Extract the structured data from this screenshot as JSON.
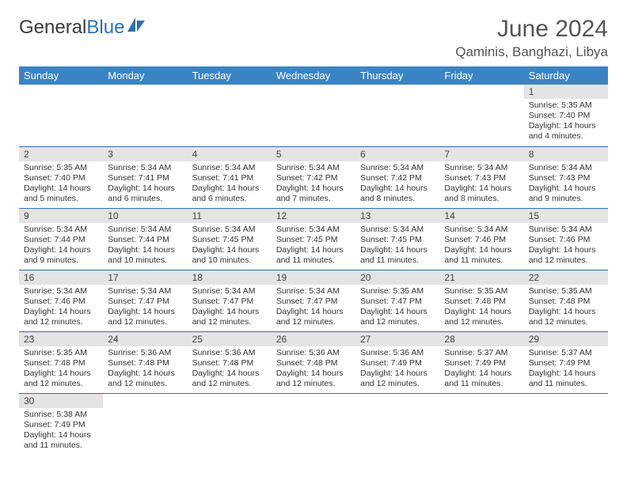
{
  "logo": {
    "text1": "General",
    "text2": "Blue"
  },
  "title": "June 2024",
  "location": "Qaminis, Banghazi, Libya",
  "colors": {
    "header_bg": "#3b84c4",
    "header_text": "#ffffff",
    "daynum_bg": "#e4e4e4",
    "border": "#2f6fb0",
    "logo_blue": "#2f6fb0"
  },
  "weekdays": [
    "Sunday",
    "Monday",
    "Tuesday",
    "Wednesday",
    "Thursday",
    "Friday",
    "Saturday"
  ],
  "weeks": [
    [
      null,
      null,
      null,
      null,
      null,
      null,
      {
        "d": "1",
        "sr": "Sunrise: 5:35 AM",
        "ss": "Sunset: 7:40 PM",
        "dl": "Daylight: 14 hours and 4 minutes."
      }
    ],
    [
      {
        "d": "2",
        "sr": "Sunrise: 5:35 AM",
        "ss": "Sunset: 7:40 PM",
        "dl": "Daylight: 14 hours and 5 minutes."
      },
      {
        "d": "3",
        "sr": "Sunrise: 5:34 AM",
        "ss": "Sunset: 7:41 PM",
        "dl": "Daylight: 14 hours and 6 minutes."
      },
      {
        "d": "4",
        "sr": "Sunrise: 5:34 AM",
        "ss": "Sunset: 7:41 PM",
        "dl": "Daylight: 14 hours and 6 minutes."
      },
      {
        "d": "5",
        "sr": "Sunrise: 5:34 AM",
        "ss": "Sunset: 7:42 PM",
        "dl": "Daylight: 14 hours and 7 minutes."
      },
      {
        "d": "6",
        "sr": "Sunrise: 5:34 AM",
        "ss": "Sunset: 7:42 PM",
        "dl": "Daylight: 14 hours and 8 minutes."
      },
      {
        "d": "7",
        "sr": "Sunrise: 5:34 AM",
        "ss": "Sunset: 7:43 PM",
        "dl": "Daylight: 14 hours and 8 minutes."
      },
      {
        "d": "8",
        "sr": "Sunrise: 5:34 AM",
        "ss": "Sunset: 7:43 PM",
        "dl": "Daylight: 14 hours and 9 minutes."
      }
    ],
    [
      {
        "d": "9",
        "sr": "Sunrise: 5:34 AM",
        "ss": "Sunset: 7:44 PM",
        "dl": "Daylight: 14 hours and 9 minutes."
      },
      {
        "d": "10",
        "sr": "Sunrise: 5:34 AM",
        "ss": "Sunset: 7:44 PM",
        "dl": "Daylight: 14 hours and 10 minutes."
      },
      {
        "d": "11",
        "sr": "Sunrise: 5:34 AM",
        "ss": "Sunset: 7:45 PM",
        "dl": "Daylight: 14 hours and 10 minutes."
      },
      {
        "d": "12",
        "sr": "Sunrise: 5:34 AM",
        "ss": "Sunset: 7:45 PM",
        "dl": "Daylight: 14 hours and 11 minutes."
      },
      {
        "d": "13",
        "sr": "Sunrise: 5:34 AM",
        "ss": "Sunset: 7:45 PM",
        "dl": "Daylight: 14 hours and 11 minutes."
      },
      {
        "d": "14",
        "sr": "Sunrise: 5:34 AM",
        "ss": "Sunset: 7:46 PM",
        "dl": "Daylight: 14 hours and 11 minutes."
      },
      {
        "d": "15",
        "sr": "Sunrise: 5:34 AM",
        "ss": "Sunset: 7:46 PM",
        "dl": "Daylight: 14 hours and 12 minutes."
      }
    ],
    [
      {
        "d": "16",
        "sr": "Sunrise: 5:34 AM",
        "ss": "Sunset: 7:46 PM",
        "dl": "Daylight: 14 hours and 12 minutes."
      },
      {
        "d": "17",
        "sr": "Sunrise: 5:34 AM",
        "ss": "Sunset: 7:47 PM",
        "dl": "Daylight: 14 hours and 12 minutes."
      },
      {
        "d": "18",
        "sr": "Sunrise: 5:34 AM",
        "ss": "Sunset: 7:47 PM",
        "dl": "Daylight: 14 hours and 12 minutes."
      },
      {
        "d": "19",
        "sr": "Sunrise: 5:34 AM",
        "ss": "Sunset: 7:47 PM",
        "dl": "Daylight: 14 hours and 12 minutes."
      },
      {
        "d": "20",
        "sr": "Sunrise: 5:35 AM",
        "ss": "Sunset: 7:47 PM",
        "dl": "Daylight: 14 hours and 12 minutes."
      },
      {
        "d": "21",
        "sr": "Sunrise: 5:35 AM",
        "ss": "Sunset: 7:48 PM",
        "dl": "Daylight: 14 hours and 12 minutes."
      },
      {
        "d": "22",
        "sr": "Sunrise: 5:35 AM",
        "ss": "Sunset: 7:48 PM",
        "dl": "Daylight: 14 hours and 12 minutes."
      }
    ],
    [
      {
        "d": "23",
        "sr": "Sunrise: 5:35 AM",
        "ss": "Sunset: 7:48 PM",
        "dl": "Daylight: 14 hours and 12 minutes."
      },
      {
        "d": "24",
        "sr": "Sunrise: 5:36 AM",
        "ss": "Sunset: 7:48 PM",
        "dl": "Daylight: 14 hours and 12 minutes."
      },
      {
        "d": "25",
        "sr": "Sunrise: 5:36 AM",
        "ss": "Sunset: 7:48 PM",
        "dl": "Daylight: 14 hours and 12 minutes."
      },
      {
        "d": "26",
        "sr": "Sunrise: 5:36 AM",
        "ss": "Sunset: 7:48 PM",
        "dl": "Daylight: 14 hours and 12 minutes."
      },
      {
        "d": "27",
        "sr": "Sunrise: 5:36 AM",
        "ss": "Sunset: 7:49 PM",
        "dl": "Daylight: 14 hours and 12 minutes."
      },
      {
        "d": "28",
        "sr": "Sunrise: 5:37 AM",
        "ss": "Sunset: 7:49 PM",
        "dl": "Daylight: 14 hours and 11 minutes."
      },
      {
        "d": "29",
        "sr": "Sunrise: 5:37 AM",
        "ss": "Sunset: 7:49 PM",
        "dl": "Daylight: 14 hours and 11 minutes."
      }
    ],
    [
      {
        "d": "30",
        "sr": "Sunrise: 5:38 AM",
        "ss": "Sunset: 7:49 PM",
        "dl": "Daylight: 14 hours and 11 minutes."
      },
      null,
      null,
      null,
      null,
      null,
      null
    ]
  ]
}
